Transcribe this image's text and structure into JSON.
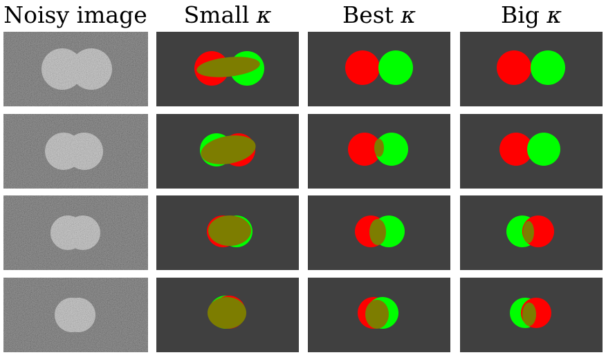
{
  "headers": [
    {
      "text": "Noisy image",
      "symbol": ""
    },
    {
      "text": "Small",
      "symbol": "κ"
    },
    {
      "text": "Best",
      "symbol": "κ"
    },
    {
      "text": "Big",
      "symbol": "κ"
    }
  ],
  "rows": [
    {
      "noisy": [
        {
          "cx": 90,
          "r": 30
        },
        {
          "cx": 132,
          "r": 30
        }
      ],
      "small": [
        {
          "t": "c",
          "fill": "#ff0000",
          "cx": 306,
          "cy": 99,
          "r": 25
        },
        {
          "t": "c",
          "fill": "#00ff00",
          "cx": 357,
          "cy": 99,
          "r": 25
        },
        {
          "t": "e",
          "fill": "#7d7d00",
          "cx": 330,
          "cy": 97,
          "rx": 46,
          "ry": 14,
          "rot": -6
        }
      ],
      "best": [
        {
          "t": "c",
          "fill": "#ff0000",
          "cx": 524,
          "cy": 98,
          "r": 25
        },
        {
          "t": "c",
          "fill": "#00ff00",
          "cx": 572,
          "cy": 98,
          "r": 25
        }
      ],
      "big": [
        {
          "t": "c",
          "fill": "#ff0000",
          "cx": 743,
          "cy": 98,
          "r": 25
        },
        {
          "t": "c",
          "fill": "#00ff00",
          "cx": 792,
          "cy": 98,
          "r": 25
        }
      ]
    },
    {
      "noisy": [
        {
          "cx": 92,
          "r": 27
        },
        {
          "cx": 122,
          "r": 27
        }
      ],
      "small": [
        {
          "t": "c",
          "fill": "#00ff00",
          "cx": 313,
          "cy": 217,
          "r": 24
        },
        {
          "t": "c",
          "fill": "#ff0000",
          "cx": 345,
          "cy": 217,
          "r": 24
        },
        {
          "t": "e",
          "fill": "#7d7d00",
          "cx": 330,
          "cy": 217,
          "rx": 40,
          "ry": 20,
          "rot": -10
        }
      ],
      "best": [
        {
          "t": "c",
          "fill": "#ff0000",
          "cx": 527,
          "cy": 216,
          "r": 24
        },
        {
          "t": "c",
          "fill": "#00ff00",
          "cx": 566,
          "cy": 216,
          "r": 24
        },
        {
          "t": "e",
          "fill": "#7d7d00",
          "cx": 548,
          "cy": 214,
          "rx": 7,
          "ry": 13,
          "rot": 0
        }
      ],
      "big": [
        {
          "t": "c",
          "fill": "#ff0000",
          "cx": 746,
          "cy": 216,
          "r": 24
        },
        {
          "t": "c",
          "fill": "#00ff00",
          "cx": 786,
          "cy": 216,
          "r": 24
        }
      ]
    },
    {
      "noisy": [
        {
          "cx": 98,
          "r": 25
        },
        {
          "cx": 120,
          "r": 25
        }
      ],
      "small": [
        {
          "t": "c",
          "fill": "#ff0000",
          "cx": 322,
          "cy": 335,
          "r": 23
        },
        {
          "t": "c",
          "fill": "#00ff00",
          "cx": 342,
          "cy": 335,
          "r": 23
        },
        {
          "t": "e",
          "fill": "#7d7d00",
          "cx": 332,
          "cy": 334,
          "rx": 31,
          "ry": 22,
          "rot": 0
        }
      ],
      "best": [
        {
          "t": "c",
          "fill": "#ff0000",
          "cx": 536,
          "cy": 335,
          "r": 23
        },
        {
          "t": "c",
          "fill": "#00ff00",
          "cx": 562,
          "cy": 335,
          "r": 23
        },
        {
          "t": "e",
          "fill": "#7d7d00",
          "cx": 546,
          "cy": 336,
          "rx": 12,
          "ry": 19,
          "rot": 0
        }
      ],
      "big": [
        {
          "t": "c",
          "fill": "#00ff00",
          "cx": 755,
          "cy": 335,
          "r": 23
        },
        {
          "t": "c",
          "fill": "#ff0000",
          "cx": 778,
          "cy": 335,
          "r": 23
        },
        {
          "t": "e",
          "fill": "#7d7d00",
          "cx": 764,
          "cy": 336,
          "rx": 8,
          "ry": 16,
          "rot": 0
        }
      ]
    },
    {
      "noisy": [
        {
          "cx": 104,
          "r": 25
        },
        {
          "cx": 113,
          "r": 25
        }
      ],
      "small": [
        {
          "t": "c",
          "fill": "#00ff00",
          "cx": 326,
          "cy": 452,
          "r": 24
        },
        {
          "t": "c",
          "fill": "#ff0000",
          "cx": 331,
          "cy": 452,
          "r": 24
        },
        {
          "t": "e",
          "fill": "#7d7d00",
          "cx": 328,
          "cy": 453,
          "rx": 28,
          "ry": 23,
          "rot": 0
        }
      ],
      "best": [
        {
          "t": "c",
          "fill": "#ff0000",
          "cx": 540,
          "cy": 453,
          "r": 23
        },
        {
          "t": "c",
          "fill": "#00ff00",
          "cx": 553,
          "cy": 453,
          "r": 23
        },
        {
          "t": "e",
          "fill": "#7d7d00",
          "cx": 545,
          "cy": 455,
          "rx": 17,
          "ry": 21,
          "rot": 0
        }
      ],
      "big": [
        {
          "t": "c",
          "fill": "#00ff00",
          "cx": 759,
          "cy": 453,
          "r": 22
        },
        {
          "t": "c",
          "fill": "#ff0000",
          "cx": 775,
          "cy": 453,
          "r": 22
        },
        {
          "t": "e",
          "fill": "#7d7d00",
          "cx": 765,
          "cy": 455,
          "rx": 10,
          "ry": 17,
          "rot": 0
        }
      ]
    }
  ]
}
